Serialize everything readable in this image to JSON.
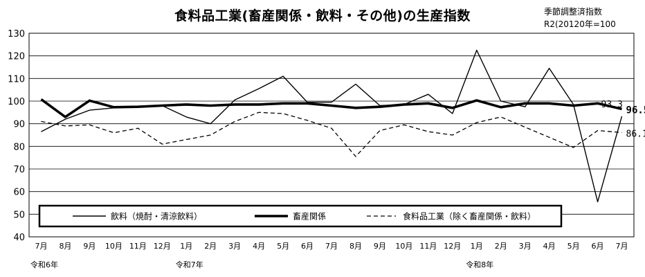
{
  "chart_data": {
    "type": "line",
    "title": "食料品工業(畜産関係・飲料・その他)の生産指数",
    "notes": [
      "季節調整済指数",
      "R2(20120年=100"
    ],
    "categories": [
      "7月",
      "8月",
      "9月",
      "10月",
      "11月",
      "12月",
      "1月",
      "2月",
      "3月",
      "4月",
      "5月",
      "6月",
      "7月",
      "8月",
      "9月",
      "10月",
      "11月",
      "12月",
      "1月",
      "2月",
      "3月",
      "4月",
      "5月",
      "6月",
      "7月"
    ],
    "era_labels": [
      {
        "index": 0,
        "text": "令和6年"
      },
      {
        "index": 6,
        "text": "令和7年"
      },
      {
        "index": 18,
        "text": "令和8年"
      }
    ],
    "ylim": [
      40,
      130
    ],
    "yticks": [
      40,
      50,
      60,
      70,
      80,
      90,
      100,
      110,
      120,
      130
    ],
    "grid": true,
    "legend_position": "bottom-inside",
    "series": [
      {
        "name": "飲料（焼酎・清涼飲料）",
        "style": "thin",
        "values": [
          86.5,
          92,
          96,
          97,
          97.5,
          98,
          93,
          90,
          100.5,
          105.5,
          111,
          99.5,
          99.5,
          107.5,
          98,
          98.5,
          103,
          94.5,
          122.5,
          100,
          97.5,
          114.5,
          98.5,
          55.5,
          93.3
        ]
      },
      {
        "name": "畜産関係",
        "style": "bold",
        "values": [
          100.8,
          93,
          100.2,
          97.3,
          97.5,
          98,
          98.5,
          98,
          98.5,
          98.5,
          99,
          99,
          98,
          97,
          97.5,
          98.5,
          99,
          97,
          100.3,
          97.3,
          99,
          99,
          98,
          99,
          96.5
        ]
      },
      {
        "name": "食料品工業（除く畜産関係・飲料）",
        "style": "dashed",
        "values": [
          91,
          89,
          89.5,
          86,
          88,
          81,
          83,
          85,
          91,
          95,
          94.5,
          91.5,
          88,
          75.5,
          87,
          89.5,
          86.5,
          85,
          90.5,
          93,
          88.5,
          84,
          79.5,
          87,
          86.1
        ]
      }
    ],
    "data_labels": [
      {
        "series": 1,
        "index": 24,
        "text": "96.5"
      },
      {
        "series": 0,
        "index": 24,
        "text": "93.3"
      },
      {
        "series": 2,
        "index": 24,
        "text": "86.1"
      }
    ]
  }
}
